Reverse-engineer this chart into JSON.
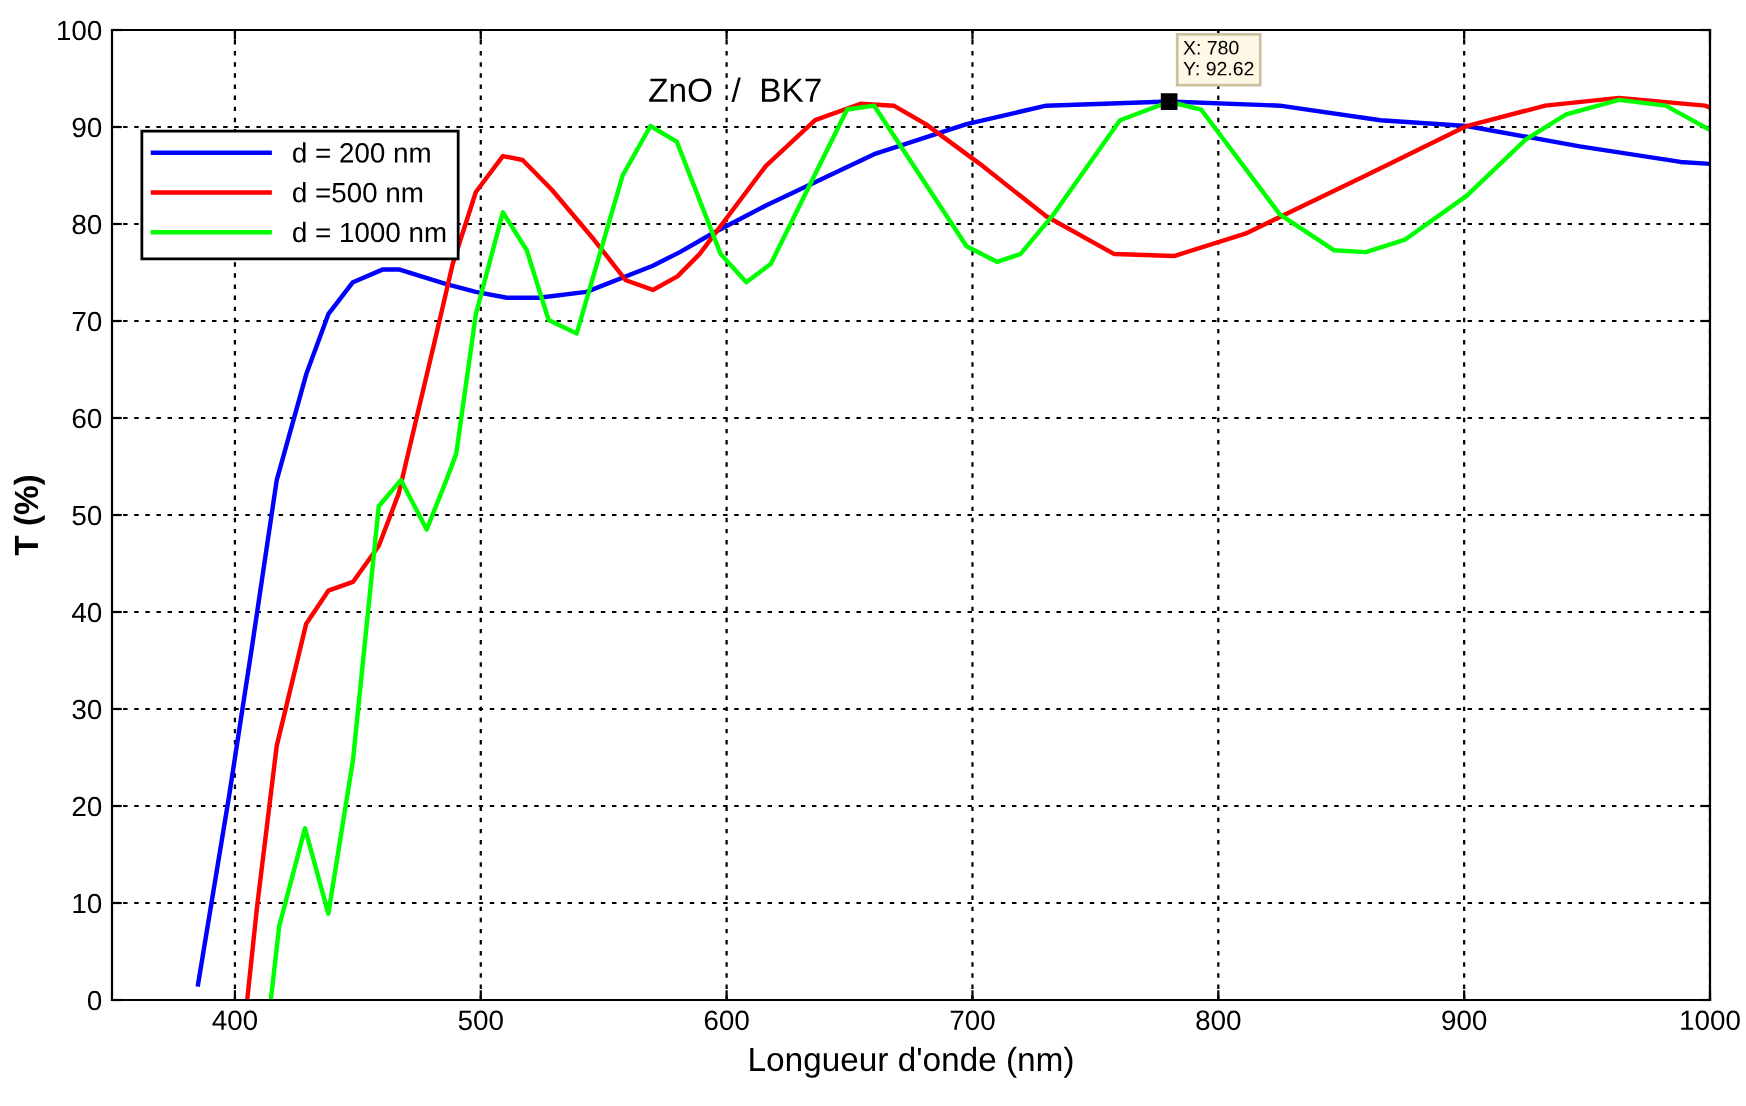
{
  "chart_data": {
    "type": "line",
    "title": "ZnO  /  BK7",
    "xlabel": "Longueur d'onde (nm)",
    "ylabel": "T (%)",
    "xlim": [
      350,
      1000
    ],
    "xticks": [
      400,
      500,
      600,
      700,
      800,
      900,
      1000
    ],
    "ylim": [
      0,
      100
    ],
    "yticks": [
      0,
      10,
      20,
      30,
      40,
      50,
      60,
      70,
      80,
      90,
      100
    ],
    "grid": true,
    "legend": "top left",
    "marker": "none",
    "line_style": "solid",
    "annotations": [
      {
        "text": "X: 780\nY: 92.62",
        "x": 780,
        "y": 92.62
      }
    ],
    "series": [
      {
        "name": "d = 200 nm",
        "color": "#0000ff",
        "x": [
          385,
          397.6,
          407,
          417,
          429,
          438,
          448,
          460,
          467,
          486,
          498,
          510.6,
          523.6,
          543,
          570,
          581,
          594,
          616,
          660,
          697.6,
          730,
          780,
          825,
          866,
          901,
          947,
          988,
          1000
        ],
        "values": [
          1.6,
          21,
          36.5,
          53.6,
          64.5,
          70.7,
          74,
          75.3,
          75.3,
          73.8,
          73,
          72.4,
          72.4,
          73,
          75.7,
          77.1,
          79,
          81.9,
          87.2,
          90.3,
          92.2,
          92.62,
          92.2,
          90.7,
          90.1,
          88,
          86.4,
          86.2
        ]
      },
      {
        "name": "d =500 nm",
        "color": "#ff0000",
        "x": [
          405,
          409,
          417,
          429,
          438,
          448,
          458.5,
          466.6,
          482,
          488.6,
          498,
          509,
          517,
          529,
          546,
          559,
          570,
          580,
          589,
          616,
          636,
          654.5,
          668,
          681,
          703,
          730,
          757.7,
          782,
          811,
          860,
          901,
          933,
          963,
          998,
          1000
        ],
        "values": [
          0,
          9.6,
          26.2,
          38.8,
          42.2,
          43.1,
          46.8,
          52.2,
          68.7,
          75.9,
          83.3,
          87,
          86.6,
          83.5,
          78.4,
          74.2,
          73.2,
          74.6,
          76.9,
          86,
          90.7,
          92.4,
          92.2,
          90.3,
          86.2,
          80.8,
          76.9,
          76.7,
          79,
          85,
          90.1,
          92.2,
          93,
          92.2,
          92
        ]
      },
      {
        "name": "d = 1000 nm",
        "color": "#00ff00",
        "x": [
          414.6,
          418,
          428.5,
          438,
          448,
          458.5,
          467.5,
          478,
          486,
          490,
          498,
          509,
          518.7,
          527.6,
          539,
          557.7,
          569,
          579.7,
          597.6,
          608,
          618,
          649,
          660,
          673,
          697.6,
          710,
          719.5,
          733,
          760,
          780,
          793,
          825,
          847,
          860,
          876,
          901,
          925,
          941.5,
          963,
          982,
          1000
        ],
        "values": [
          0,
          7.6,
          17.7,
          8.9,
          24.7,
          50.9,
          53.6,
          48.5,
          53.6,
          56.3,
          70.7,
          81.2,
          77.3,
          70.1,
          68.7,
          85,
          90.1,
          88.5,
          76.9,
          74,
          75.9,
          91.8,
          92.2,
          87.2,
          77.7,
          76.1,
          76.9,
          81,
          90.7,
          92.6,
          91.8,
          81,
          77.3,
          77.1,
          78.4,
          82.9,
          88.7,
          91.3,
          92.8,
          92.2,
          89.7
        ]
      }
    ]
  }
}
